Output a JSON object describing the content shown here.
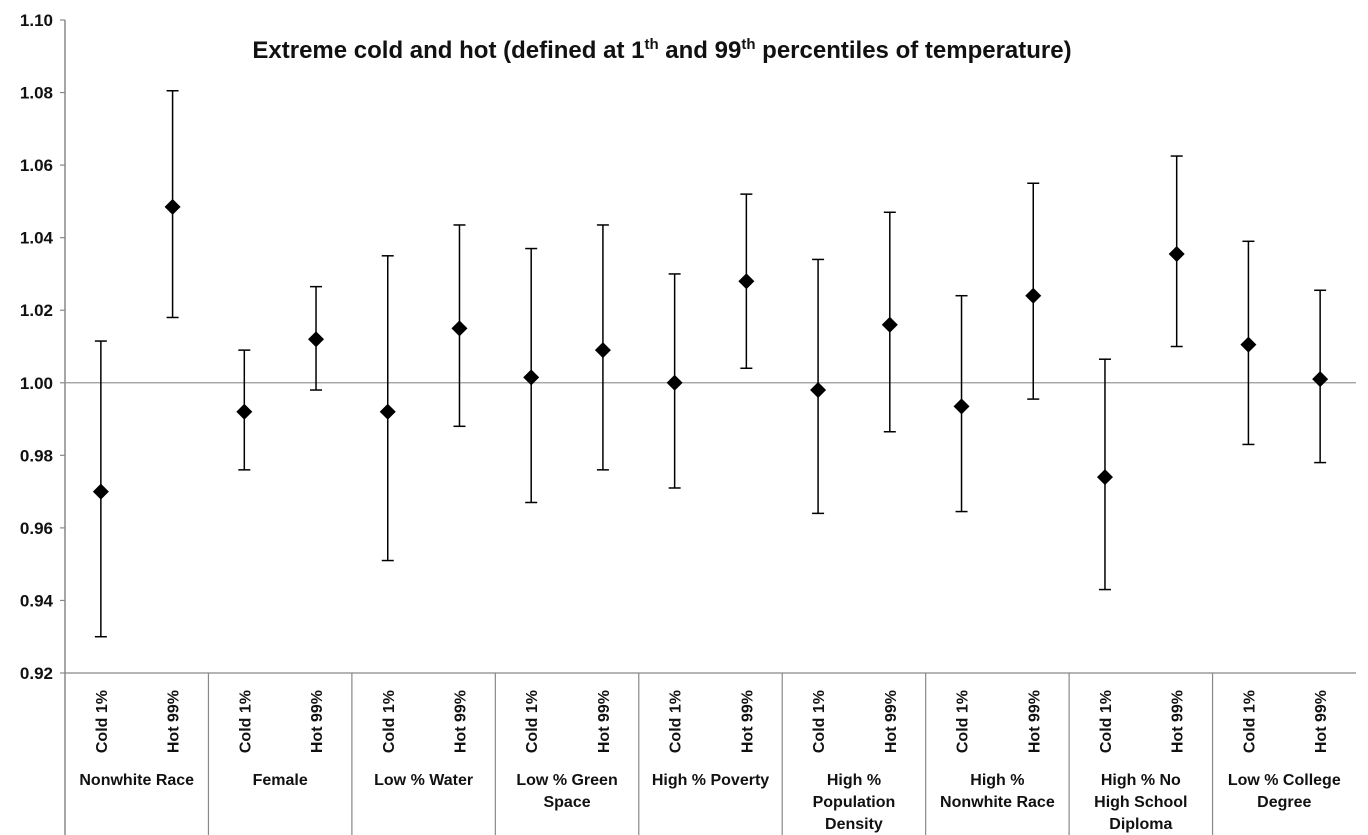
{
  "chart_data": {
    "type": "scatter",
    "title": "Extreme cold and hot (defined at 1th and 99th percentiles of temperature)",
    "title_parts": {
      "pre": "Extreme cold and hot (defined at 1",
      "sup1": "th",
      "mid": " and 99",
      "sup2": "th",
      "post": " percentiles of temperature)"
    },
    "ylim": [
      0.92,
      1.1
    ],
    "yticks": [
      "0.92",
      "0.94",
      "0.96",
      "0.98",
      "1.00",
      "1.02",
      "1.04",
      "1.06",
      "1.08",
      "1.10"
    ],
    "reference_line": 1.0,
    "grid": false,
    "legend": "none",
    "colors": {
      "marker": "#000000",
      "reference_line": "#999999",
      "axis": "#888888"
    },
    "groups": [
      {
        "label_lines": [
          "Nonwhite Race"
        ],
        "points": [
          {
            "label": "Cold 1%",
            "value": 0.97,
            "lower": 0.93,
            "upper": 1.0115
          },
          {
            "label": "Hot 99%",
            "value": 1.0485,
            "lower": 1.018,
            "upper": 1.0805
          }
        ]
      },
      {
        "label_lines": [
          "Female"
        ],
        "points": [
          {
            "label": "Cold 1%",
            "value": 0.992,
            "lower": 0.976,
            "upper": 1.009
          },
          {
            "label": "Hot 99%",
            "value": 1.012,
            "lower": 0.998,
            "upper": 1.0265
          }
        ]
      },
      {
        "label_lines": [
          "Low %   Water"
        ],
        "points": [
          {
            "label": "Cold 1%",
            "value": 0.992,
            "lower": 0.951,
            "upper": 1.035
          },
          {
            "label": "Hot 99%",
            "value": 1.015,
            "lower": 0.988,
            "upper": 1.0435
          }
        ]
      },
      {
        "label_lines": [
          "Low %  Green",
          "Space"
        ],
        "points": [
          {
            "label": "Cold 1%",
            "value": 1.0015,
            "lower": 0.967,
            "upper": 1.037
          },
          {
            "label": "Hot 99%",
            "value": 1.009,
            "lower": 0.976,
            "upper": 1.0435
          }
        ]
      },
      {
        "label_lines": [
          "High %  Poverty"
        ],
        "points": [
          {
            "label": "Cold 1%",
            "value": 1.0,
            "lower": 0.971,
            "upper": 1.03
          },
          {
            "label": "Hot 99%",
            "value": 1.028,
            "lower": 1.004,
            "upper": 1.052
          }
        ]
      },
      {
        "label_lines": [
          "High %",
          "Population",
          "Density"
        ],
        "points": [
          {
            "label": "Cold 1%",
            "value": 0.998,
            "lower": 0.964,
            "upper": 1.034
          },
          {
            "label": "Hot 99%",
            "value": 1.016,
            "lower": 0.9865,
            "upper": 1.047
          }
        ]
      },
      {
        "label_lines": [
          "High %",
          "Nonwhite Race"
        ],
        "points": [
          {
            "label": "Cold 1%",
            "value": 0.9935,
            "lower": 0.9645,
            "upper": 1.024
          },
          {
            "label": "Hot 99%",
            "value": 1.024,
            "lower": 0.9955,
            "upper": 1.055
          }
        ]
      },
      {
        "label_lines": [
          "High %  No",
          "High School",
          "Diploma"
        ],
        "points": [
          {
            "label": "Cold 1%",
            "value": 0.974,
            "lower": 0.943,
            "upper": 1.0065
          },
          {
            "label": "Hot 99%",
            "value": 1.0355,
            "lower": 1.01,
            "upper": 1.0625
          }
        ]
      },
      {
        "label_lines": [
          "Low %  College",
          "Degree"
        ],
        "points": [
          {
            "label": "Cold 1%",
            "value": 1.0105,
            "lower": 0.983,
            "upper": 1.039
          },
          {
            "label": "Hot 99%",
            "value": 1.001,
            "lower": 0.978,
            "upper": 1.0255
          }
        ]
      }
    ]
  }
}
